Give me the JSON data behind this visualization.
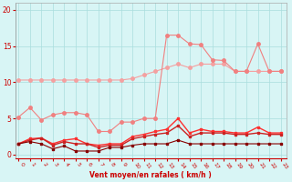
{
  "x": [
    0,
    1,
    2,
    3,
    4,
    5,
    6,
    7,
    8,
    9,
    10,
    11,
    12,
    13,
    14,
    15,
    16,
    17,
    18,
    19,
    20,
    21,
    22,
    23
  ],
  "line_salmon1": [
    10.3,
    10.3,
    10.3,
    10.3,
    10.3,
    10.3,
    10.3,
    10.3,
    10.3,
    10.3,
    10.5,
    11.0,
    11.5,
    12.0,
    12.5,
    12.0,
    12.5,
    12.5,
    12.5,
    11.5,
    11.5,
    11.5,
    11.5,
    11.5
  ],
  "line_salmon2": [
    5.2,
    6.5,
    4.8,
    5.5,
    5.8,
    5.8,
    5.5,
    3.2,
    3.2,
    4.5,
    4.5,
    5.0,
    5.0,
    16.5,
    16.5,
    15.3,
    15.2,
    13.1,
    13.0,
    11.5,
    11.5,
    15.3,
    11.5,
    11.5
  ],
  "line_red1": [
    1.5,
    2.2,
    2.3,
    1.5,
    2.0,
    2.2,
    1.5,
    1.3,
    1.5,
    1.5,
    2.5,
    2.8,
    3.2,
    3.5,
    5.0,
    3.0,
    3.5,
    3.2,
    3.2,
    3.0,
    3.0,
    3.8,
    3.0,
    3.0
  ],
  "line_red2": [
    1.5,
    2.0,
    2.3,
    1.3,
    1.8,
    1.5,
    1.5,
    1.0,
    1.3,
    1.3,
    2.2,
    2.5,
    2.8,
    3.0,
    4.0,
    2.5,
    3.0,
    3.0,
    3.0,
    2.8,
    2.8,
    3.0,
    2.8,
    2.8
  ],
  "line_dark": [
    1.5,
    1.8,
    1.5,
    0.8,
    1.2,
    0.5,
    0.5,
    0.5,
    1.0,
    1.0,
    1.3,
    1.5,
    1.5,
    1.5,
    2.0,
    1.5,
    1.5,
    1.5,
    1.5,
    1.5,
    1.5,
    1.5,
    1.5,
    1.5
  ],
  "color_lsalmon": "#F4A0A0",
  "color_salmon2": "#F08080",
  "color_red1": "#FF3030",
  "color_red2": "#CC2222",
  "color_dark": "#880000",
  "bg_color": "#D8F5F5",
  "grid_color": "#AADDDD",
  "xlabel": "Vent moyen/en rafales ( km/h )",
  "xticks": [
    0,
    1,
    2,
    3,
    4,
    5,
    6,
    7,
    8,
    9,
    10,
    11,
    12,
    13,
    14,
    15,
    16,
    17,
    18,
    19,
    20,
    21,
    22,
    23
  ],
  "yticks": [
    0,
    5,
    10,
    15,
    20
  ],
  "ylim": [
    -0.5,
    21
  ],
  "xlim": [
    -0.3,
    23.5
  ]
}
